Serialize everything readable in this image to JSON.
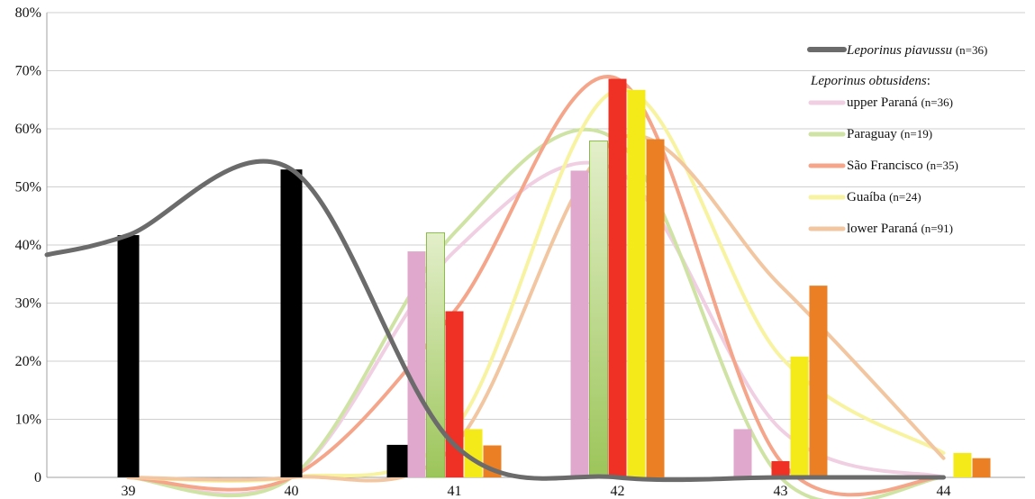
{
  "chart_data": {
    "type": "bar",
    "categories": [
      "39",
      "40",
      "41",
      "42",
      "43",
      "44"
    ],
    "ylim": [
      0,
      80
    ],
    "yticks": [
      "0",
      "10%",
      "20%",
      "30%",
      "40%",
      "50%",
      "60%",
      "70%",
      "80%"
    ],
    "grid": true,
    "legend_position": "right",
    "legend_group_title": "Leporinus obtusidens",
    "series": [
      {
        "name": "Leporinus piavussu",
        "n_label": "(n=36)",
        "italic": true,
        "color": "#000000",
        "curve_color": "#6b6b6b",
        "values": [
          41.7,
          53.0,
          5.6,
          0,
          0,
          0
        ]
      },
      {
        "name": "upper Paraná",
        "n_label": "(n=36)",
        "color": "#e0a8cc",
        "curve_color": "#f0cfe3",
        "values": [
          0,
          0,
          38.9,
          52.8,
          8.3,
          0
        ]
      },
      {
        "name": "Paraguay",
        "n_label": "(n=19)",
        "color": "#b5d67a",
        "curve_color": "#cfe3a5",
        "values": [
          0,
          0,
          42.1,
          57.9,
          0,
          0
        ]
      },
      {
        "name": "São Francisco",
        "n_label": "(n=35)",
        "color": "#ee3124",
        "curve_color": "#f4a58a",
        "values": [
          0,
          0,
          28.6,
          68.6,
          2.8,
          0
        ]
      },
      {
        "name": "Guaíba",
        "n_label": "(n=24)",
        "color": "#f4ea1a",
        "curve_color": "#f7f3a0",
        "values": [
          0,
          0,
          8.3,
          66.7,
          20.8,
          4.2
        ]
      },
      {
        "name": "lower Paraná",
        "n_label": "(n=91)",
        "color": "#ea7f23",
        "curve_color": "#f1c6a0",
        "values": [
          0,
          0,
          5.5,
          58.2,
          33.0,
          3.3
        ]
      }
    ]
  }
}
